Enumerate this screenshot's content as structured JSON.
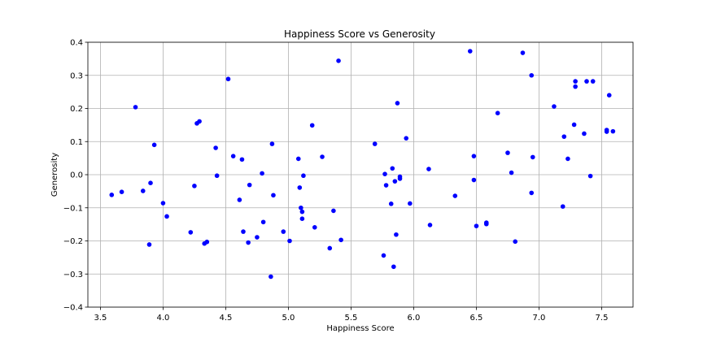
{
  "chart_data": {
    "type": "scatter",
    "title": "Happiness Score vs Generosity",
    "xlabel": "Happiness Score",
    "ylabel": "Generosity",
    "xlim": [
      3.4,
      7.75
    ],
    "ylim": [
      -0.4,
      0.4
    ],
    "xticks": [
      3.5,
      4.0,
      4.5,
      5.0,
      5.5,
      6.0,
      6.5,
      7.0,
      7.5
    ],
    "xtick_labels": [
      "3.5",
      "4.0",
      "4.5",
      "5.0",
      "5.5",
      "6.0",
      "6.5",
      "7.0",
      "7.5"
    ],
    "yticks": [
      -0.4,
      -0.3,
      -0.2,
      -0.1,
      0.0,
      0.1,
      0.2,
      0.3,
      0.4
    ],
    "ytick_labels": [
      "−0.4",
      "−0.3",
      "−0.2",
      "−0.1",
      "0.0",
      "0.1",
      "0.2",
      "0.3",
      "0.4"
    ],
    "grid": true,
    "marker_color": "#0000ff",
    "series": [
      {
        "points": [
          [
            3.59,
            -0.061
          ],
          [
            3.67,
            -0.052
          ],
          [
            3.78,
            0.204
          ],
          [
            3.84,
            -0.049
          ],
          [
            3.89,
            -0.211
          ],
          [
            3.9,
            -0.025
          ],
          [
            3.93,
            0.09
          ],
          [
            4.0,
            -0.086
          ],
          [
            4.03,
            -0.126
          ],
          [
            4.22,
            -0.174
          ],
          [
            4.25,
            -0.034
          ],
          [
            4.27,
            0.155
          ],
          [
            4.29,
            0.161
          ],
          [
            4.33,
            -0.208
          ],
          [
            4.35,
            -0.203
          ],
          [
            4.42,
            0.081
          ],
          [
            4.43,
            -0.003
          ],
          [
            4.52,
            0.289
          ],
          [
            4.56,
            0.056
          ],
          [
            4.61,
            -0.076
          ],
          [
            4.63,
            0.046
          ],
          [
            4.64,
            -0.172
          ],
          [
            4.68,
            -0.205
          ],
          [
            4.69,
            -0.031
          ],
          [
            4.75,
            -0.189
          ],
          [
            4.79,
            0.004
          ],
          [
            4.8,
            -0.143
          ],
          [
            4.86,
            -0.308
          ],
          [
            4.87,
            0.093
          ],
          [
            4.88,
            -0.062
          ],
          [
            4.96,
            -0.172
          ],
          [
            5.01,
            -0.2
          ],
          [
            5.08,
            0.048
          ],
          [
            5.09,
            -0.039
          ],
          [
            5.1,
            -0.1
          ],
          [
            5.11,
            -0.112
          ],
          [
            5.11,
            -0.133
          ],
          [
            5.12,
            -0.003
          ],
          [
            5.19,
            0.149
          ],
          [
            5.21,
            -0.159
          ],
          [
            5.27,
            0.054
          ],
          [
            5.33,
            -0.222
          ],
          [
            5.36,
            -0.109
          ],
          [
            5.4,
            0.344
          ],
          [
            5.42,
            -0.197
          ],
          [
            5.69,
            0.093
          ],
          [
            5.76,
            -0.244
          ],
          [
            5.77,
            0.002
          ],
          [
            5.78,
            -0.032
          ],
          [
            5.82,
            -0.088
          ],
          [
            5.83,
            0.019
          ],
          [
            5.84,
            -0.278
          ],
          [
            5.85,
            -0.02
          ],
          [
            5.86,
            -0.181
          ],
          [
            5.87,
            0.216
          ],
          [
            5.89,
            -0.006
          ],
          [
            5.89,
            -0.012
          ],
          [
            5.94,
            0.11
          ],
          [
            5.97,
            -0.087
          ],
          [
            6.12,
            0.017
          ],
          [
            6.13,
            -0.152
          ],
          [
            6.33,
            -0.064
          ],
          [
            6.45,
            0.373
          ],
          [
            6.48,
            0.056
          ],
          [
            6.48,
            -0.016
          ],
          [
            6.5,
            -0.155
          ],
          [
            6.58,
            -0.145
          ],
          [
            6.58,
            -0.149
          ],
          [
            6.67,
            0.186
          ],
          [
            6.75,
            0.066
          ],
          [
            6.78,
            0.006
          ],
          [
            6.81,
            -0.202
          ],
          [
            6.87,
            0.368
          ],
          [
            6.94,
            0.3
          ],
          [
            6.94,
            -0.055
          ],
          [
            6.95,
            0.053
          ],
          [
            7.12,
            0.206
          ],
          [
            7.19,
            -0.096
          ],
          [
            7.2,
            0.115
          ],
          [
            7.23,
            0.048
          ],
          [
            7.28,
            0.151
          ],
          [
            7.29,
            0.266
          ],
          [
            7.29,
            0.282
          ],
          [
            7.36,
            0.124
          ],
          [
            7.38,
            0.282
          ],
          [
            7.41,
            -0.004
          ],
          [
            7.43,
            0.282
          ],
          [
            7.54,
            0.13
          ],
          [
            7.54,
            0.135
          ],
          [
            7.56,
            0.24
          ],
          [
            7.59,
            0.131
          ]
        ]
      }
    ]
  }
}
